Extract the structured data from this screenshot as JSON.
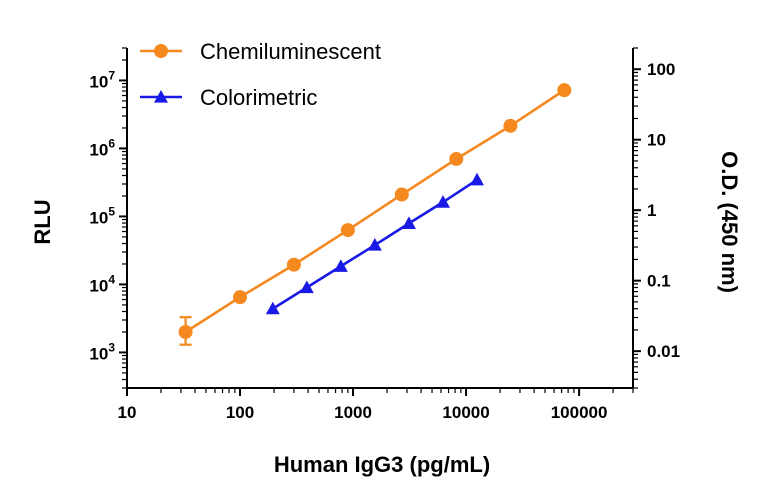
{
  "chart_data": {
    "type": "line",
    "xlabel": "Human IgG3 (pg/mL)",
    "ylabel": "RLU",
    "y2label": "O.D. (450 nm)",
    "x_scale": "log",
    "y_scale": "log",
    "y2_scale": "log",
    "xlim": [
      10,
      300000
    ],
    "ylim": [
      300,
      30000000
    ],
    "y2lim": [
      0.003,
      200
    ],
    "x_ticks": [
      10,
      100,
      1000,
      10000,
      100000
    ],
    "x_tick_labels": [
      "10",
      "100",
      "1000",
      "10000",
      "100000"
    ],
    "y_ticks": [
      1000,
      10000,
      100000,
      1000000,
      10000000
    ],
    "y_tick_base": "10",
    "y_tick_exponents": [
      "3",
      "4",
      "5",
      "6",
      "7"
    ],
    "y2_ticks": [
      0.01,
      0.1,
      1,
      10,
      100
    ],
    "y2_tick_labels": [
      "0.01",
      "0.1",
      "1",
      "10",
      "100"
    ],
    "grid": false,
    "legend": "top-left",
    "series": [
      {
        "name": "Chemiluminescent",
        "axis": "left",
        "color": "#F5891F",
        "marker": "circle",
        "x": [
          33,
          100,
          300,
          900,
          2700,
          8200,
          24700,
          74000
        ],
        "y": [
          2000,
          6500,
          19500,
          63000,
          210000,
          700000,
          2150000,
          7200000
        ],
        "y_err_low": [
          1300,
          null,
          null,
          null,
          null,
          null,
          null,
          null
        ],
        "y_err_high": [
          3300,
          null,
          null,
          null,
          null,
          null,
          null,
          null
        ]
      },
      {
        "name": "Colorimetric",
        "axis": "right",
        "color": "#1A1AE6",
        "marker": "triangle",
        "x": [
          195,
          390,
          780,
          1560,
          3125,
          6250,
          12500
        ],
        "y": [
          0.04,
          0.08,
          0.16,
          0.32,
          0.65,
          1.3,
          2.7
        ]
      }
    ]
  }
}
